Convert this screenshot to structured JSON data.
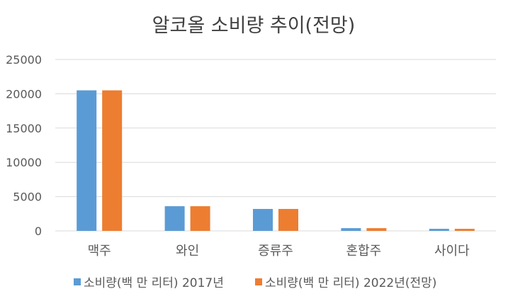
{
  "chart_data": {
    "type": "bar",
    "title": "알코올 소비량 추이(전망)",
    "xlabel": "",
    "ylabel": "",
    "categories": [
      "맥주",
      "와인",
      "증류주",
      "혼합주",
      "사이다"
    ],
    "series": [
      {
        "name": "소비량(백 만 리터) 2017년",
        "color": "#5B9BD5",
        "values": [
          20500,
          3600,
          3200,
          400,
          300
        ]
      },
      {
        "name": "소비량(백 만 리터) 2022년(전망)",
        "color": "#ED7D31",
        "values": [
          20500,
          3600,
          3200,
          400,
          300
        ]
      }
    ],
    "ylim": [
      0,
      25000
    ],
    "yticks": [
      "0",
      "5000",
      "10000",
      "15000",
      "20000",
      "25000"
    ],
    "grid": true,
    "legend": "bottom"
  }
}
